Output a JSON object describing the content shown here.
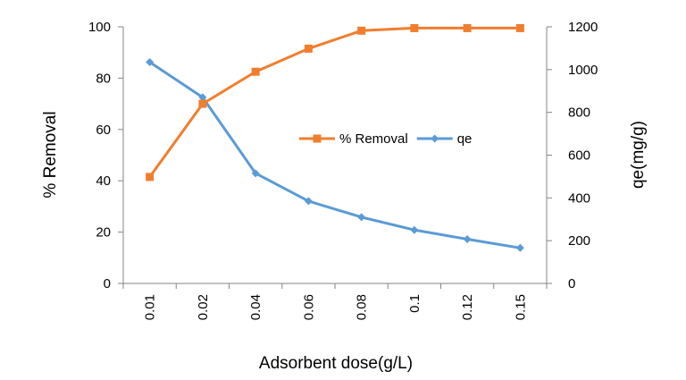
{
  "chart_data": {
    "type": "line",
    "categories": [
      "0.01",
      "0.02",
      "0.04",
      "0.06",
      "0.08",
      "0.1",
      "0.12",
      "0.15"
    ],
    "series": [
      {
        "name": "% Removal",
        "axis": "left",
        "color": "#F07E2E",
        "marker": "square",
        "values": [
          41.5,
          70,
          82.5,
          91.5,
          98.5,
          99.5,
          99.5,
          99.5
        ]
      },
      {
        "name": "qe",
        "axis": "right",
        "color": "#5B9BD5",
        "marker": "diamond",
        "values": [
          1035,
          870,
          515,
          385,
          310,
          250,
          207,
          166
        ]
      }
    ],
    "xlabel": "Adsorbent dose(g/L)",
    "ylabel": "% Removal",
    "y2label": "qe(mg/g)",
    "ylim": [
      0,
      100
    ],
    "y2lim": [
      0,
      1200
    ],
    "yticks": [
      "0",
      "20",
      "40",
      "60",
      "80",
      "100"
    ],
    "y2ticks": [
      "0",
      "200",
      "400",
      "600",
      "800",
      "1000",
      "1200"
    ],
    "grid": false,
    "legend_position": "center-right"
  }
}
